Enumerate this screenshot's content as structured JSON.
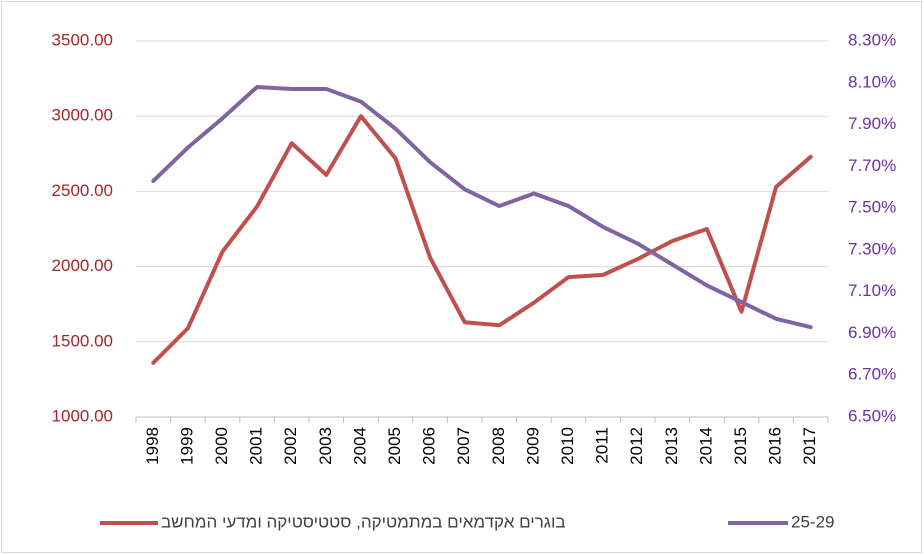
{
  "chart_data": {
    "type": "line",
    "categories": [
      "1998",
      "1999",
      "2000",
      "2001",
      "2002",
      "2003",
      "2004",
      "2005",
      "2006",
      "2007",
      "2008",
      "2009",
      "2010",
      "2011",
      "2012",
      "2013",
      "2014",
      "2015",
      "2016",
      "2017"
    ],
    "series": [
      {
        "name": "בוגרים אקדמאים במתמטיקה, סטטיסטיקה ומדעי המחשב",
        "color": "#c0504d",
        "values": [
          1360,
          1590,
          2100,
          2400,
          2820,
          2610,
          3000,
          2720,
          2060,
          1630,
          1610,
          1760,
          1930,
          1945,
          2050,
          2170,
          2250,
          1700,
          2530,
          2730
        ]
      },
      {
        "name": "25-29",
        "color": "#8064a2",
        "axis": "y2",
        "values": [
          7.63,
          7.79,
          7.93,
          8.08,
          8.07,
          8.07,
          8.01,
          7.88,
          7.72,
          7.59,
          7.51,
          7.57,
          7.51,
          7.41,
          7.33,
          7.23,
          7.13,
          7.05,
          6.97,
          6.93
        ]
      }
    ],
    "ylim": [
      1000,
      3500
    ],
    "yticks": [
      {
        "value": 1000,
        "label": "1000.00"
      },
      {
        "value": 1500,
        "label": "1500.00"
      },
      {
        "value": 2000,
        "label": "2000.00"
      },
      {
        "value": 2500,
        "label": "2500.00"
      },
      {
        "value": 3000,
        "label": "3000.00"
      },
      {
        "value": 3500,
        "label": "3500.00"
      }
    ],
    "y2lim": [
      6.5,
      8.3
    ],
    "y2ticks": [
      {
        "value": 6.5,
        "label": "6.50%"
      },
      {
        "value": 6.7,
        "label": "6.70%"
      },
      {
        "value": 6.9,
        "label": "6.90%"
      },
      {
        "value": 7.1,
        "label": "7.10%"
      },
      {
        "value": 7.3,
        "label": "7.30%"
      },
      {
        "value": 7.5,
        "label": "7.50%"
      },
      {
        "value": 7.7,
        "label": "7.70%"
      },
      {
        "value": 7.9,
        "label": "7.90%"
      },
      {
        "value": 8.1,
        "label": "8.10%"
      },
      {
        "value": 8.3,
        "label": "8.30%"
      }
    ],
    "ytick_color": "#a5262a",
    "y2tick_color": "#7030a0",
    "grid": true,
    "legend": "bottom"
  }
}
